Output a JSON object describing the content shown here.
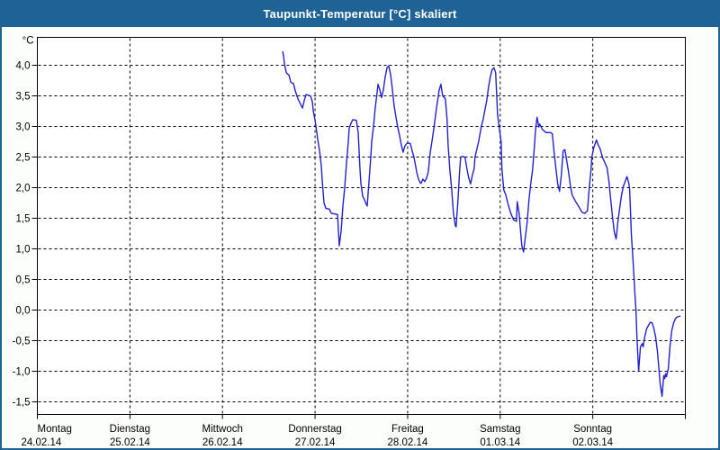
{
  "window": {
    "title": "Taupunkt-Temperatur [°C] skaliert"
  },
  "colors": {
    "titlebar_bg": "#1e6296",
    "title_text": "#ffffff",
    "window_border": "#1e6296",
    "page_bg": "#fcfefc",
    "plot_bg": "#ffffff",
    "plot_border": "#000000",
    "grid": "#000000",
    "line": "#2222cc"
  },
  "chart_data": {
    "type": "line",
    "title": "Taupunkt-Temperatur [°C] skaliert",
    "ylabel": "°C",
    "xlabel": "",
    "grid": "dashed",
    "legend": "none",
    "ylim_visible": [
      -1.71,
      4.46
    ],
    "y_ticks": [
      {
        "value": 4.0,
        "label": "4,0"
      },
      {
        "value": 3.5,
        "label": "3,5"
      },
      {
        "value": 3.0,
        "label": "3,0"
      },
      {
        "value": 2.5,
        "label": "2,5"
      },
      {
        "value": 2.0,
        "label": "2,0"
      },
      {
        "value": 1.5,
        "label": "1,5"
      },
      {
        "value": 1.0,
        "label": "1,0"
      },
      {
        "value": 0.5,
        "label": "0,5"
      },
      {
        "value": 0.0,
        "label": "0,0"
      },
      {
        "value": -0.5,
        "label": "-0,5"
      },
      {
        "value": -1.0,
        "label": "-1,0"
      },
      {
        "value": -1.5,
        "label": "-1,5"
      }
    ],
    "x_days": [
      {
        "name": "Montag",
        "date": "24.02.14"
      },
      {
        "name": "Dienstag",
        "date": "25.02.14"
      },
      {
        "name": "Mittwoch",
        "date": "26.02.14"
      },
      {
        "name": "Donnerstag",
        "date": "27.02.14"
      },
      {
        "name": "Freitag",
        "date": "28.02.14"
      },
      {
        "name": "Samstag",
        "date": "01.03.14"
      },
      {
        "name": "Sonntag",
        "date": "02.03.14"
      }
    ],
    "series": [
      {
        "name": "Taupunkt-Temperatur",
        "x_unit": "days since Montag 24.02.14 00:00",
        "y_unit": "°C",
        "points": [
          [
            2.65,
            4.22
          ],
          [
            2.66,
            4.15
          ],
          [
            2.67,
            4.02
          ],
          [
            2.689,
            3.88
          ],
          [
            2.7,
            3.86
          ],
          [
            2.718,
            3.84
          ],
          [
            2.738,
            3.72
          ],
          [
            2.767,
            3.7
          ],
          [
            2.786,
            3.58
          ],
          [
            2.816,
            3.45
          ],
          [
            2.845,
            3.36
          ],
          [
            2.864,
            3.3
          ],
          [
            2.883,
            3.42
          ],
          [
            2.903,
            3.52
          ],
          [
            2.951,
            3.5
          ],
          [
            2.971,
            3.4
          ],
          [
            2.981,
            3.25
          ],
          [
            3.0,
            3.1
          ],
          [
            3.019,
            2.9
          ],
          [
            3.029,
            2.78
          ],
          [
            3.049,
            2.6
          ],
          [
            3.068,
            2.34
          ],
          [
            3.078,
            2.1
          ],
          [
            3.097,
            1.75
          ],
          [
            3.117,
            1.66
          ],
          [
            3.155,
            1.65
          ],
          [
            3.175,
            1.58
          ],
          [
            3.214,
            1.57
          ],
          [
            3.243,
            1.56
          ],
          [
            3.252,
            1.3
          ],
          [
            3.262,
            1.05
          ],
          [
            3.282,
            1.3
          ],
          [
            3.301,
            1.7
          ],
          [
            3.32,
            2.0
          ],
          [
            3.34,
            2.4
          ],
          [
            3.359,
            2.75
          ],
          [
            3.369,
            2.97
          ],
          [
            3.388,
            3.05
          ],
          [
            3.408,
            3.11
          ],
          [
            3.447,
            3.1
          ],
          [
            3.466,
            2.9
          ],
          [
            3.476,
            2.6
          ],
          [
            3.485,
            2.3
          ],
          [
            3.495,
            2.07
          ],
          [
            3.515,
            1.86
          ],
          [
            3.534,
            1.8
          ],
          [
            3.553,
            1.73
          ],
          [
            3.563,
            1.7
          ],
          [
            3.583,
            2.1
          ],
          [
            3.602,
            2.5
          ],
          [
            3.612,
            2.75
          ],
          [
            3.631,
            3.0
          ],
          [
            3.65,
            3.3
          ],
          [
            3.67,
            3.55
          ],
          [
            3.68,
            3.69
          ],
          [
            3.699,
            3.6
          ],
          [
            3.718,
            3.47
          ],
          [
            3.738,
            3.6
          ],
          [
            3.757,
            3.8
          ],
          [
            3.777,
            3.96
          ],
          [
            3.796,
            3.99
          ],
          [
            3.816,
            3.85
          ],
          [
            3.835,
            3.6
          ],
          [
            3.854,
            3.34
          ],
          [
            3.874,
            3.15
          ],
          [
            3.893,
            2.99
          ],
          [
            3.913,
            2.85
          ],
          [
            3.932,
            2.7
          ],
          [
            3.951,
            2.58
          ],
          [
            3.971,
            2.68
          ],
          [
            3.99,
            2.72
          ],
          [
            4.01,
            2.73
          ],
          [
            4.029,
            2.72
          ],
          [
            4.049,
            2.6
          ],
          [
            4.068,
            2.5
          ],
          [
            4.087,
            2.35
          ],
          [
            4.097,
            2.26
          ],
          [
            4.117,
            2.14
          ],
          [
            4.136,
            2.08
          ],
          [
            4.146,
            2.07
          ],
          [
            4.165,
            2.14
          ],
          [
            4.184,
            2.1
          ],
          [
            4.204,
            2.15
          ],
          [
            4.223,
            2.26
          ],
          [
            4.243,
            2.56
          ],
          [
            4.262,
            2.75
          ],
          [
            4.282,
            2.95
          ],
          [
            4.311,
            3.29
          ],
          [
            4.34,
            3.59
          ],
          [
            4.359,
            3.69
          ],
          [
            4.379,
            3.5
          ],
          [
            4.408,
            3.45
          ],
          [
            4.427,
            3.1
          ],
          [
            4.437,
            2.7
          ],
          [
            4.456,
            2.3
          ],
          [
            4.476,
            1.97
          ],
          [
            4.495,
            1.58
          ],
          [
            4.515,
            1.38
          ],
          [
            4.524,
            1.36
          ],
          [
            4.544,
            1.8
          ],
          [
            4.563,
            2.3
          ],
          [
            4.573,
            2.5
          ],
          [
            4.602,
            2.51
          ],
          [
            4.621,
            2.49
          ],
          [
            4.641,
            2.3
          ],
          [
            4.66,
            2.16
          ],
          [
            4.68,
            2.06
          ],
          [
            4.699,
            2.2
          ],
          [
            4.718,
            2.31
          ],
          [
            4.728,
            2.5
          ],
          [
            4.767,
            2.75
          ],
          [
            4.796,
            3.0
          ],
          [
            4.816,
            3.12
          ],
          [
            4.835,
            3.27
          ],
          [
            4.854,
            3.42
          ],
          [
            4.874,
            3.64
          ],
          [
            4.893,
            3.81
          ],
          [
            4.913,
            3.93
          ],
          [
            4.932,
            3.96
          ],
          [
            4.951,
            3.88
          ],
          [
            4.961,
            3.55
          ],
          [
            4.971,
            3.2
          ],
          [
            4.99,
            2.97
          ],
          [
            5.01,
            2.75
          ],
          [
            5.019,
            2.3
          ],
          [
            5.039,
            1.96
          ],
          [
            5.058,
            1.89
          ],
          [
            5.087,
            1.72
          ],
          [
            5.117,
            1.57
          ],
          [
            5.146,
            1.47
          ],
          [
            5.175,
            1.45
          ],
          [
            5.184,
            1.77
          ],
          [
            5.204,
            1.58
          ],
          [
            5.223,
            1.24
          ],
          [
            5.233,
            1.05
          ],
          [
            5.252,
            0.95
          ],
          [
            5.272,
            1.2
          ],
          [
            5.291,
            1.43
          ],
          [
            5.311,
            1.81
          ],
          [
            5.33,
            2.06
          ],
          [
            5.35,
            2.3
          ],
          [
            5.369,
            2.65
          ],
          [
            5.379,
            2.9
          ],
          [
            5.398,
            3.15
          ],
          [
            5.417,
            2.99
          ],
          [
            5.427,
            3.04
          ],
          [
            5.456,
            2.95
          ],
          [
            5.495,
            2.9
          ],
          [
            5.544,
            2.9
          ],
          [
            5.563,
            2.88
          ],
          [
            5.583,
            2.56
          ],
          [
            5.602,
            2.31
          ],
          [
            5.621,
            2.06
          ],
          [
            5.641,
            1.94
          ],
          [
            5.66,
            2.2
          ],
          [
            5.68,
            2.6
          ],
          [
            5.699,
            2.62
          ],
          [
            5.718,
            2.45
          ],
          [
            5.738,
            2.26
          ],
          [
            5.757,
            2.05
          ],
          [
            5.777,
            1.88
          ],
          [
            5.816,
            1.77
          ],
          [
            5.845,
            1.7
          ],
          [
            5.883,
            1.6
          ],
          [
            5.913,
            1.58
          ],
          [
            5.942,
            1.62
          ],
          [
            5.961,
            1.97
          ],
          [
            5.981,
            2.3
          ],
          [
            5.99,
            2.5
          ],
          [
            6.01,
            2.65
          ],
          [
            6.039,
            2.78
          ],
          [
            6.058,
            2.7
          ],
          [
            6.078,
            2.64
          ],
          [
            6.107,
            2.49
          ],
          [
            6.136,
            2.39
          ],
          [
            6.155,
            2.32
          ],
          [
            6.175,
            2.1
          ],
          [
            6.194,
            1.8
          ],
          [
            6.214,
            1.5
          ],
          [
            6.233,
            1.27
          ],
          [
            6.252,
            1.16
          ],
          [
            6.272,
            1.45
          ],
          [
            6.291,
            1.67
          ],
          [
            6.311,
            1.88
          ],
          [
            6.33,
            2.02
          ],
          [
            6.35,
            2.1
          ],
          [
            6.369,
            2.18
          ],
          [
            6.388,
            2.08
          ],
          [
            6.398,
            1.97
          ],
          [
            6.408,
            1.6
          ],
          [
            6.417,
            1.24
          ],
          [
            6.427,
            0.99
          ],
          [
            6.437,
            0.75
          ],
          [
            6.447,
            0.5
          ],
          [
            6.456,
            0.25
          ],
          [
            6.466,
            0.01
          ],
          [
            6.476,
            -0.4
          ],
          [
            6.485,
            -0.68
          ],
          [
            6.495,
            -1.0
          ],
          [
            6.515,
            -0.6
          ],
          [
            6.534,
            -0.55
          ],
          [
            6.544,
            -0.6
          ],
          [
            6.563,
            -0.42
          ],
          [
            6.583,
            -0.3
          ],
          [
            6.602,
            -0.25
          ],
          [
            6.621,
            -0.2
          ],
          [
            6.641,
            -0.21
          ],
          [
            6.66,
            -0.3
          ],
          [
            6.68,
            -0.45
          ],
          [
            6.699,
            -0.68
          ],
          [
            6.718,
            -1.02
          ],
          [
            6.728,
            -1.2
          ],
          [
            6.738,
            -1.31
          ],
          [
            6.748,
            -1.41
          ],
          [
            6.757,
            -1.25
          ],
          [
            6.767,
            -1.07
          ],
          [
            6.777,
            -1.12
          ],
          [
            6.786,
            -1.04
          ],
          [
            6.796,
            -1.09
          ],
          [
            6.816,
            -0.95
          ],
          [
            6.835,
            -0.58
          ],
          [
            6.854,
            -0.33
          ],
          [
            6.874,
            -0.21
          ],
          [
            6.893,
            -0.14
          ],
          [
            6.913,
            -0.11
          ],
          [
            6.942,
            -0.1
          ]
        ]
      }
    ]
  }
}
